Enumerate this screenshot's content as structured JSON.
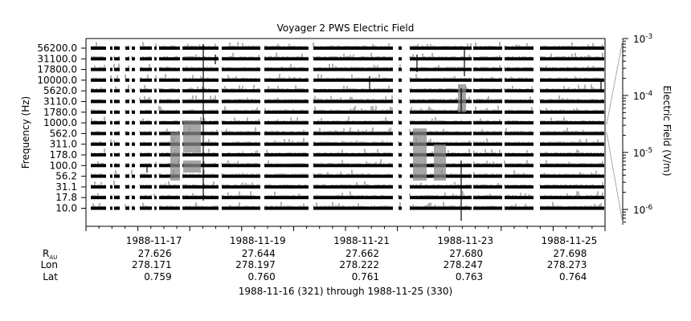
{
  "chart_data": {
    "type": "spectrogram-strips",
    "title": "Voyager 2 PWS Electric Field",
    "ylabel": "Frequency (Hz)",
    "colorbar_label": "Electric Field (V/m)",
    "colorbar_ticks": [
      {
        "base": "10",
        "exp": "-3"
      },
      {
        "base": "10",
        "exp": "-4"
      },
      {
        "base": "10",
        "exp": "-5"
      },
      {
        "base": "10",
        "exp": "-6"
      }
    ],
    "channels": [
      "56200.0",
      "31100.0",
      "17800.0",
      "10000.0",
      "5620.0",
      "3110.0",
      "1780.0",
      "1000.0",
      "562.0",
      "311.0",
      "178.0",
      "100.0",
      "56.2",
      "31.1",
      "17.8",
      "10.0"
    ],
    "x_start_day": 321,
    "x_end_day": 331,
    "date_ticks": [
      {
        "label": "1988-11-17",
        "day": 322,
        "r_au": "27.626",
        "lon": "278.171",
        "lat": "0.759"
      },
      {
        "label": "1988-11-19",
        "day": 324,
        "r_au": "27.644",
        "lon": "278.197",
        "lat": "0.760"
      },
      {
        "label": "1988-11-21",
        "day": 326,
        "r_au": "27.662",
        "lon": "278.222",
        "lat": "0.761"
      },
      {
        "label": "1988-11-23",
        "day": 328,
        "r_au": "27.680",
        "lon": "278.247",
        "lat": "0.763"
      },
      {
        "label": "1988-11-25",
        "day": 330,
        "r_au": "27.698",
        "lon": "278.273",
        "lat": "0.764"
      }
    ],
    "ephemeris_labels": {
      "r": "R",
      "r_sub": "AU",
      "lon": "Lon",
      "lat": "Lat"
    },
    "footer": "1988-11-16 (321) through 1988-11-25 (330)"
  }
}
